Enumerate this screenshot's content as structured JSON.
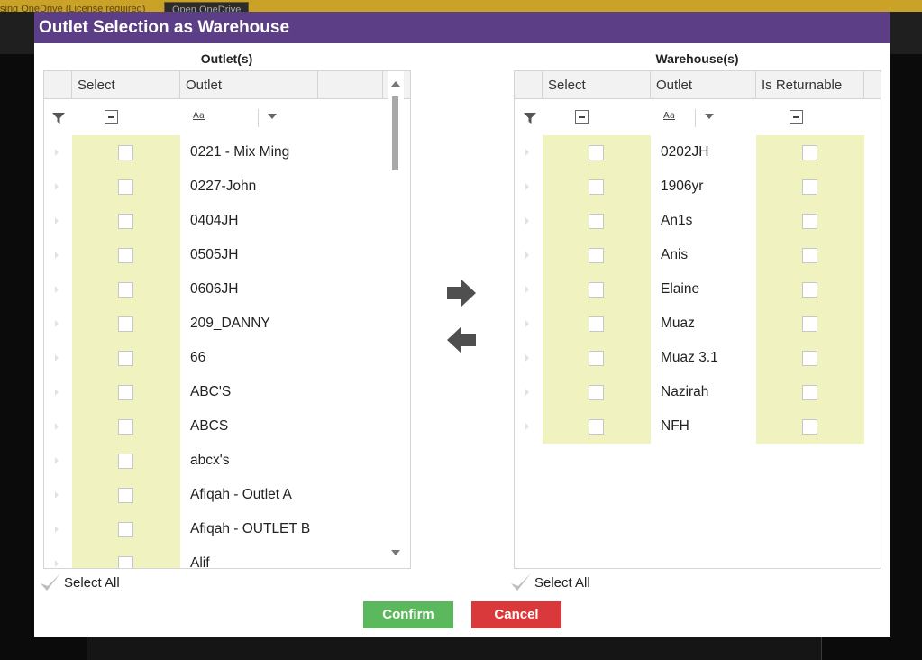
{
  "background": {
    "topbar_text": "sing OneDrive (License required)",
    "topbar_button": "Open OneDrive"
  },
  "dialog": {
    "title": "Outlet Selection as Warehouse",
    "title_bar_color": "#5b3e85"
  },
  "left_panel": {
    "label": "Outlet(s)",
    "columns": {
      "select": "Select",
      "outlet": "Outlet"
    },
    "rows": [
      "0221 - Mix Ming",
      "0227-John",
      "0404JH",
      "0505JH",
      "0606JH",
      "209_DANNY",
      "66",
      "ABC'S",
      "ABCS",
      "abcx's",
      "Afiqah - Outlet A",
      "Afiqah - OUTLET B",
      "Alif"
    ],
    "select_all": "Select All"
  },
  "right_panel": {
    "label": "Warehouse(s)",
    "columns": {
      "select": "Select",
      "outlet": "Outlet",
      "returnable": "Is Returnable"
    },
    "rows": [
      "0202JH",
      "1906yr",
      "An1s",
      "Anis",
      "Elaine",
      "Muaz",
      "Muaz 3.1",
      "Nazirah",
      "NFH"
    ],
    "select_all": "Select All"
  },
  "actions": {
    "move_right_icon": "arrow-right-icon",
    "move_left_icon": "arrow-left-icon",
    "confirm": "Confirm",
    "cancel": "Cancel",
    "confirm_color": "#5cb85c",
    "cancel_color": "#d9393a"
  },
  "colors": {
    "select_column_bg": "#f0f2bf"
  }
}
